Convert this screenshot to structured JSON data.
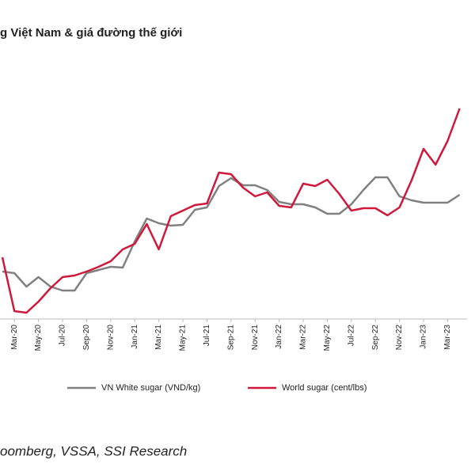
{
  "chart_data": {
    "type": "line",
    "title": "g Việt Nam & giá đường thế giới",
    "source": "oomberg, VSSA, SSI Research",
    "categories": [
      null,
      "Mar-20",
      null,
      "May-20",
      null,
      "Jul-20",
      null,
      "Sep-20",
      null,
      "Nov-20",
      null,
      "Jan-21",
      null,
      "Mar-21",
      null,
      "May-21",
      null,
      "Jul-21",
      null,
      "Sep-21",
      null,
      "Nov-21",
      null,
      "Jan-22",
      null,
      "Mar-22",
      null,
      "May-22",
      null,
      "Jul-22",
      null,
      "Sep-22",
      null,
      "Nov-22",
      null,
      "Jan-23",
      null,
      "Mar-23",
      null
    ],
    "ylim": [
      50,
      390
    ],
    "series": [
      {
        "name": "VN White sugar (VND/kg)",
        "color": "#808080",
        "values": [
          107,
          105,
          88,
          100,
          88,
          83,
          83,
          105,
          109,
          113,
          112,
          145,
          174,
          168,
          165,
          166,
          185,
          188,
          215,
          225,
          216,
          216,
          210,
          195,
          192,
          192,
          188,
          180,
          180,
          192,
          210,
          226,
          226,
          202,
          197,
          194,
          194,
          194,
          204
        ]
      },
      {
        "name": "World sugar (cent/lbs)",
        "color": "#d0183a",
        "values": [
          125,
          57,
          55,
          69,
          86,
          100,
          102,
          107,
          113,
          120,
          135,
          142,
          167,
          135,
          177,
          184,
          191,
          193,
          232,
          230,
          213,
          202,
          207,
          190,
          188,
          218,
          215,
          223,
          205,
          184,
          187,
          187,
          178,
          188,
          222,
          262,
          242,
          272,
          313
        ]
      }
    ]
  }
}
